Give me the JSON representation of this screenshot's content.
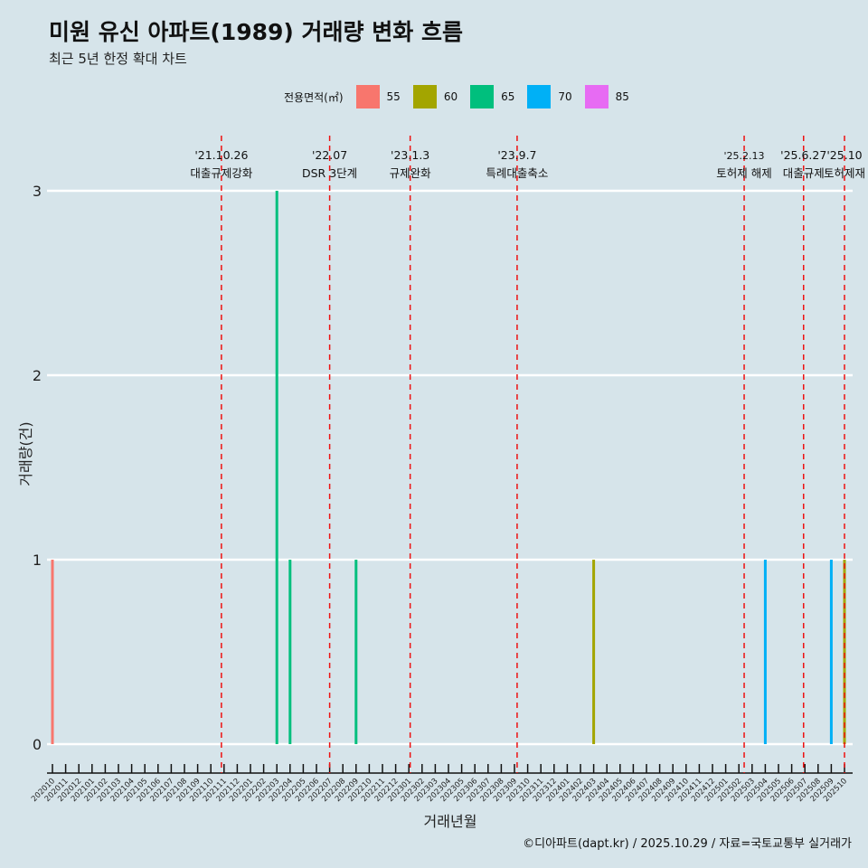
{
  "title": "미원 유신 아파트(1989) 거래량 변화 흐름",
  "subtitle": "최근 5년 한정 확대 차트",
  "caption": "©디아파트(dapt.kr) / 2025.10.29 / 자료=국토교통부 실거래가",
  "chart_data": {
    "type": "bar",
    "xlabel": "거래년월",
    "ylabel": "거래량(건)",
    "ylim": [
      0,
      3
    ],
    "yticks": [
      0,
      1,
      2,
      3
    ],
    "legend_title": "전용면적(㎡)",
    "legend_position": "top",
    "legend": [
      {
        "name": "55",
        "color": "#F8766D"
      },
      {
        "name": "60",
        "color": "#A3A500"
      },
      {
        "name": "65",
        "color": "#00BF7D"
      },
      {
        "name": "70",
        "color": "#00B0F6"
      },
      {
        "name": "85",
        "color": "#E76BF3"
      }
    ],
    "categories": [
      "202010",
      "202011",
      "202012",
      "202101",
      "202102",
      "202103",
      "202104",
      "202105",
      "202106",
      "202107",
      "202108",
      "202109",
      "202110",
      "202111",
      "202112",
      "202201",
      "202202",
      "202203",
      "202204",
      "202205",
      "202206",
      "202207",
      "202208",
      "202209",
      "202210",
      "202211",
      "202212",
      "202301",
      "202302",
      "202303",
      "202304",
      "202305",
      "202306",
      "202307",
      "202308",
      "202309",
      "202310",
      "202311",
      "202312",
      "202401",
      "202402",
      "202403",
      "202404",
      "202405",
      "202406",
      "202407",
      "202408",
      "202409",
      "202410",
      "202411",
      "202412",
      "202501",
      "202502",
      "202503",
      "202504",
      "202505",
      "202506",
      "202507",
      "202508",
      "202509",
      "202510"
    ],
    "bars": [
      {
        "month": "202010",
        "area": "55",
        "value": 1
      },
      {
        "month": "202203",
        "area": "65",
        "value": 3
      },
      {
        "month": "202204",
        "area": "65",
        "value": 1
      },
      {
        "month": "202209",
        "area": "65",
        "value": 1
      },
      {
        "month": "202403",
        "area": "60",
        "value": 1
      },
      {
        "month": "202504",
        "area": "70",
        "value": 1
      },
      {
        "month": "202509",
        "area": "70",
        "value": 1
      },
      {
        "month": "202510",
        "area": "60",
        "value": 1
      }
    ],
    "events": [
      {
        "month": 12.8,
        "date": "'21.10.26",
        "label": "대출규제강화"
      },
      {
        "month": 21,
        "date": "'22.07",
        "label": "DSR 3단계"
      },
      {
        "month": 27.1,
        "date": "'23.1.3",
        "label": "규제완화"
      },
      {
        "month": 35.2,
        "date": "'23.9.7",
        "label": "특례대출축소"
      },
      {
        "month": 52.4,
        "date": "'25.2.13",
        "label": "토허제 해제"
      },
      {
        "month": 56.9,
        "date": "'25.6.27",
        "label": "대출규제"
      },
      {
        "month": 60,
        "date": "'25.10",
        "label": "토허제재"
      }
    ]
  }
}
